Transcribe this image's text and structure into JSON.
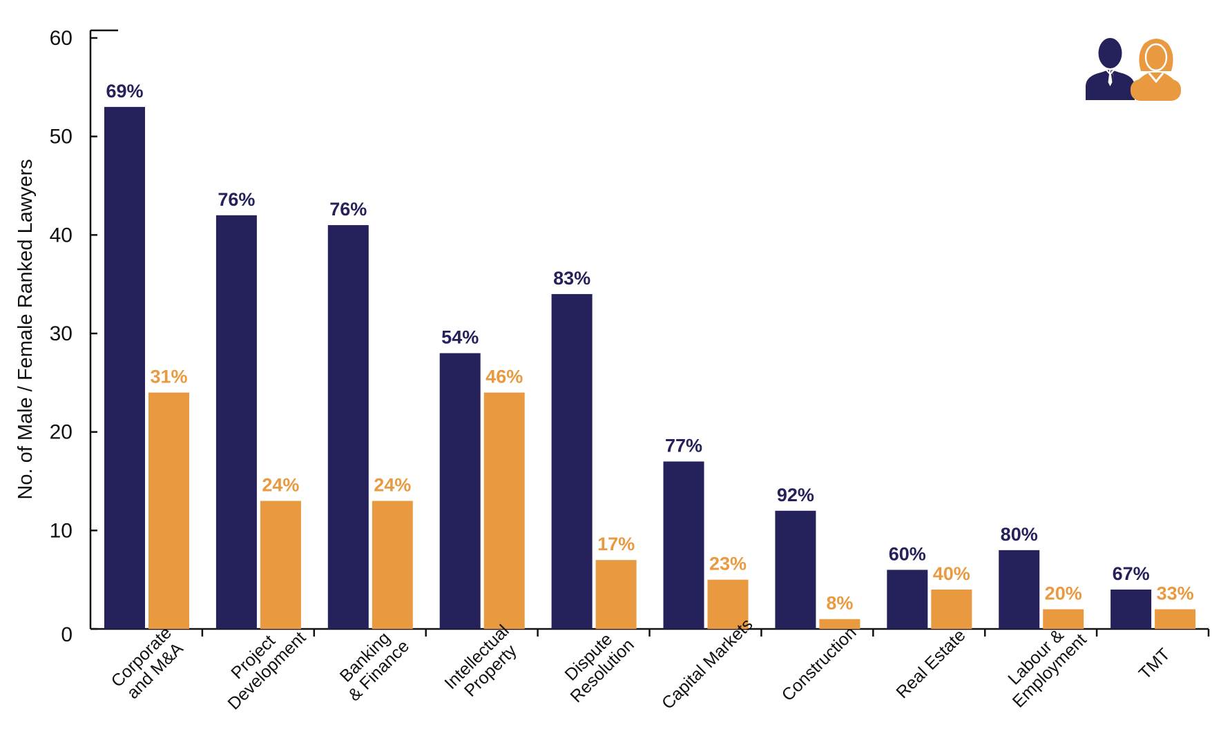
{
  "chart_data": {
    "type": "bar",
    "title": "",
    "xlabel": "",
    "ylabel": "No. of Male / Female Ranked Lawyers",
    "ylim": [
      0,
      60
    ],
    "yticks": [
      "0",
      "10",
      "20",
      "30",
      "40",
      "50",
      "60"
    ],
    "grid": false,
    "legend": "top-right icons (male, female)",
    "categories": [
      [
        "Corporate",
        "and M&A"
      ],
      [
        "Project",
        "Development"
      ],
      [
        "Banking",
        "& Finance"
      ],
      [
        "Intellectual",
        "Property"
      ],
      [
        "Dispute",
        "Resolution"
      ],
      [
        "Capital Markets"
      ],
      [
        "Construction"
      ],
      [
        "Real Estate"
      ],
      [
        "Labour &",
        "Employment"
      ],
      [
        "TMT"
      ]
    ],
    "series": [
      {
        "color": "#25215b",
        "values": [
          53,
          42,
          41,
          28,
          34,
          17,
          12,
          6,
          8,
          4
        ],
        "labels": [
          "69%",
          "76%",
          "76%",
          "54%",
          "83%",
          "77%",
          "92%",
          "60%",
          "80%",
          "67%"
        ]
      },
      {
        "color": "#e99a40",
        "values": [
          24,
          13,
          13,
          24,
          7,
          5,
          1,
          4,
          2,
          2
        ],
        "labels": [
          "31%",
          "24%",
          "24%",
          "46%",
          "17%",
          "23%",
          "8%",
          "40%",
          "20%",
          "33%"
        ]
      }
    ]
  },
  "legend_icons": [
    {
      "icon": "male-person-icon",
      "color": "#25215b"
    },
    {
      "icon": "female-person-icon",
      "color": "#e99a40"
    }
  ]
}
